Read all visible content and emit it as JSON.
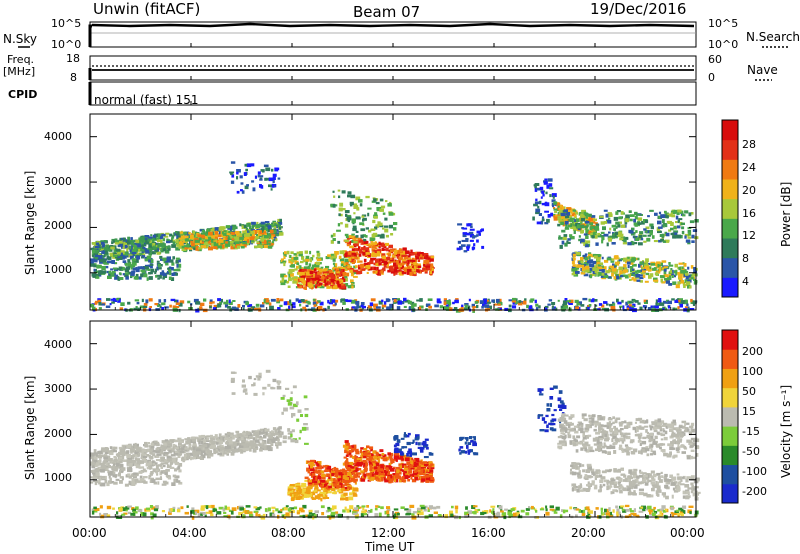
{
  "header": {
    "station": "Unwin (fitACF)",
    "beam": "Beam 07",
    "date": "19/Dec/2016"
  },
  "noise_panel": {
    "left_label": "N.Sky",
    "right_label": "N.Search",
    "ticks_left": [
      "10^5",
      "10^0"
    ],
    "ticks_right": [
      "10^5",
      "10^0"
    ]
  },
  "freq_panel": {
    "left_label_line1": "Freq.",
    "left_label_line2": "[MHz]",
    "right_label": "Nave",
    "ticks_left": [
      "18",
      "8"
    ],
    "ticks_right": [
      "60",
      "0"
    ]
  },
  "cpid_panel": {
    "left_label": "CPID",
    "text": "normal (fast) 151"
  },
  "chart_data": [
    {
      "type": "heatmap",
      "name": "power",
      "ylabel": "Slant Range [km]",
      "ylim": [
        180,
        4500
      ],
      "y_ticks": [
        "1000",
        "2000",
        "3000",
        "4000"
      ],
      "x_ticks": [
        "00:00",
        "04:00",
        "08:00",
        "12:00",
        "16:00",
        "20:00",
        "00:00"
      ],
      "colorbar": {
        "label": "Power [dB]",
        "ticks": [
          "28",
          "24",
          "20",
          "16",
          "12",
          "8",
          "4"
        ],
        "colors": [
          "#1a1aff",
          "#2a55a8",
          "#2f7a5a",
          "#4aa84a",
          "#a8c83a",
          "#f0b21a",
          "#f07a12",
          "#e33018",
          "#d80c0c"
        ]
      }
    },
    {
      "type": "heatmap",
      "name": "velocity",
      "ylabel": "Slant Range [km]",
      "xlabel": "Time UT",
      "ylim": [
        180,
        4500
      ],
      "y_ticks": [
        "1000",
        "2000",
        "3000",
        "4000"
      ],
      "x_ticks": [
        "00:00",
        "04:00",
        "08:00",
        "12:00",
        "16:00",
        "20:00",
        "00:00"
      ],
      "colorbar": {
        "label": "Velocity [m s⁻¹]",
        "ticks": [
          "200",
          "100",
          "50",
          "15",
          "-15",
          "-50",
          "-100",
          "-200"
        ],
        "colors": [
          "#1a2acc",
          "#1e4fa0",
          "#2a8a2a",
          "#7ccc3a",
          "#bbbbb0",
          "#f0d43a",
          "#f0a012",
          "#f05a12",
          "#e01010"
        ]
      }
    }
  ]
}
